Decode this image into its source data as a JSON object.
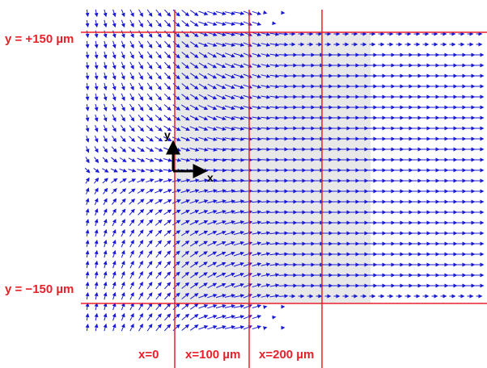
{
  "labels": {
    "y_top": "y = +150 µm",
    "y_bottom": "y = −150 µm",
    "x_0": "x=0",
    "x_100": "x=100 µm",
    "x_200": "x=200 µm"
  },
  "axes": {
    "x": "x",
    "y": "y"
  },
  "colors": {
    "arrows": "#1a1ad6",
    "lines": "#e8202a",
    "shaded_region": "#e8e8e8",
    "axes": "#000000"
  }
}
